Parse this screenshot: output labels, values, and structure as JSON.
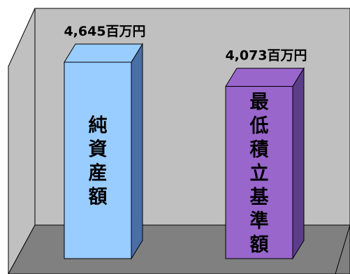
{
  "chart_data": {
    "type": "bar",
    "categories": [
      "純資産額",
      "最低積立基準額"
    ],
    "values": [
      4645,
      4073
    ],
    "value_labels": [
      "4,645百万円",
      "4,073百万円"
    ],
    "unit": "百万円",
    "title": "",
    "xlabel": "",
    "ylabel": "",
    "grid": false,
    "legend": "none",
    "colors": {
      "bar1_front": "#99ccff",
      "bar1_side": "#4a6fa5",
      "bar2_front": "#9966cc",
      "bar2_side": "#5c3d8a",
      "back_wall": "#c0c0c0",
      "floor": "#808080",
      "left_wall": "#c0c0c0"
    }
  }
}
